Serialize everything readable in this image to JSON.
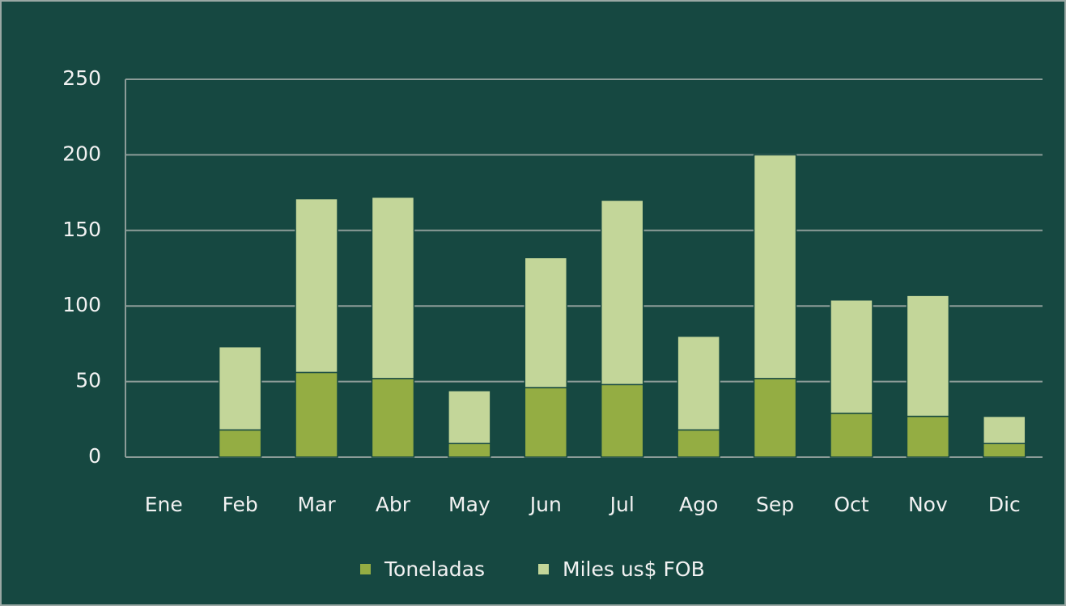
{
  "chart_data": {
    "type": "stacked_bar",
    "categories": [
      "Ene",
      "Feb",
      "Mar",
      "Abr",
      "May",
      "Jun",
      "Jul",
      "Ago",
      "Sep",
      "Oct",
      "Nov",
      "Dic"
    ],
    "series": [
      {
        "name": "Toneladas",
        "color": "#94ad43",
        "values": [
          0,
          18,
          56,
          52,
          9,
          46,
          48,
          18,
          52,
          29,
          27,
          9
        ]
      },
      {
        "name": "Miles us$ FOB",
        "color": "#c3d699",
        "values": [
          0,
          55,
          115,
          120,
          35,
          86,
          122,
          62,
          148,
          75,
          80,
          18
        ]
      }
    ],
    "ylim": [
      0,
      250
    ],
    "yticks": [
      0,
      50,
      100,
      150,
      200,
      250
    ],
    "grid": true,
    "legend": "bottom"
  }
}
